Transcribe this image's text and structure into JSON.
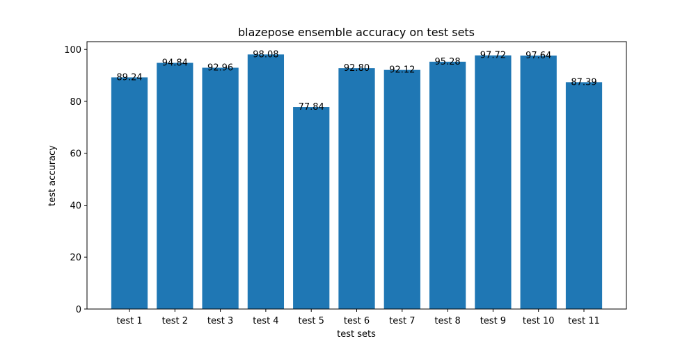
{
  "chart_data": {
    "type": "bar",
    "title": "blazepose ensemble accuracy on test sets",
    "xlabel": "test sets",
    "ylabel": "test accuracy",
    "categories": [
      "test 1",
      "test 2",
      "test 3",
      "test 4",
      "test 5",
      "test 6",
      "test 7",
      "test 8",
      "test 9",
      "test 10",
      "test 11"
    ],
    "values": [
      89.24,
      94.84,
      92.96,
      98.08,
      77.84,
      92.8,
      92.12,
      95.28,
      97.72,
      97.64,
      87.39
    ],
    "value_labels": [
      "89.24",
      "94.84",
      "92.96",
      "98.08",
      "77.84",
      "92.80",
      "92.12",
      "95.28",
      "97.72",
      "97.64",
      "87.39"
    ],
    "yticks": [
      0,
      20,
      40,
      60,
      80,
      100
    ],
    "ylim": [
      0,
      103
    ],
    "grid": false,
    "legend": "none",
    "bar_color": "#1f77b4"
  }
}
